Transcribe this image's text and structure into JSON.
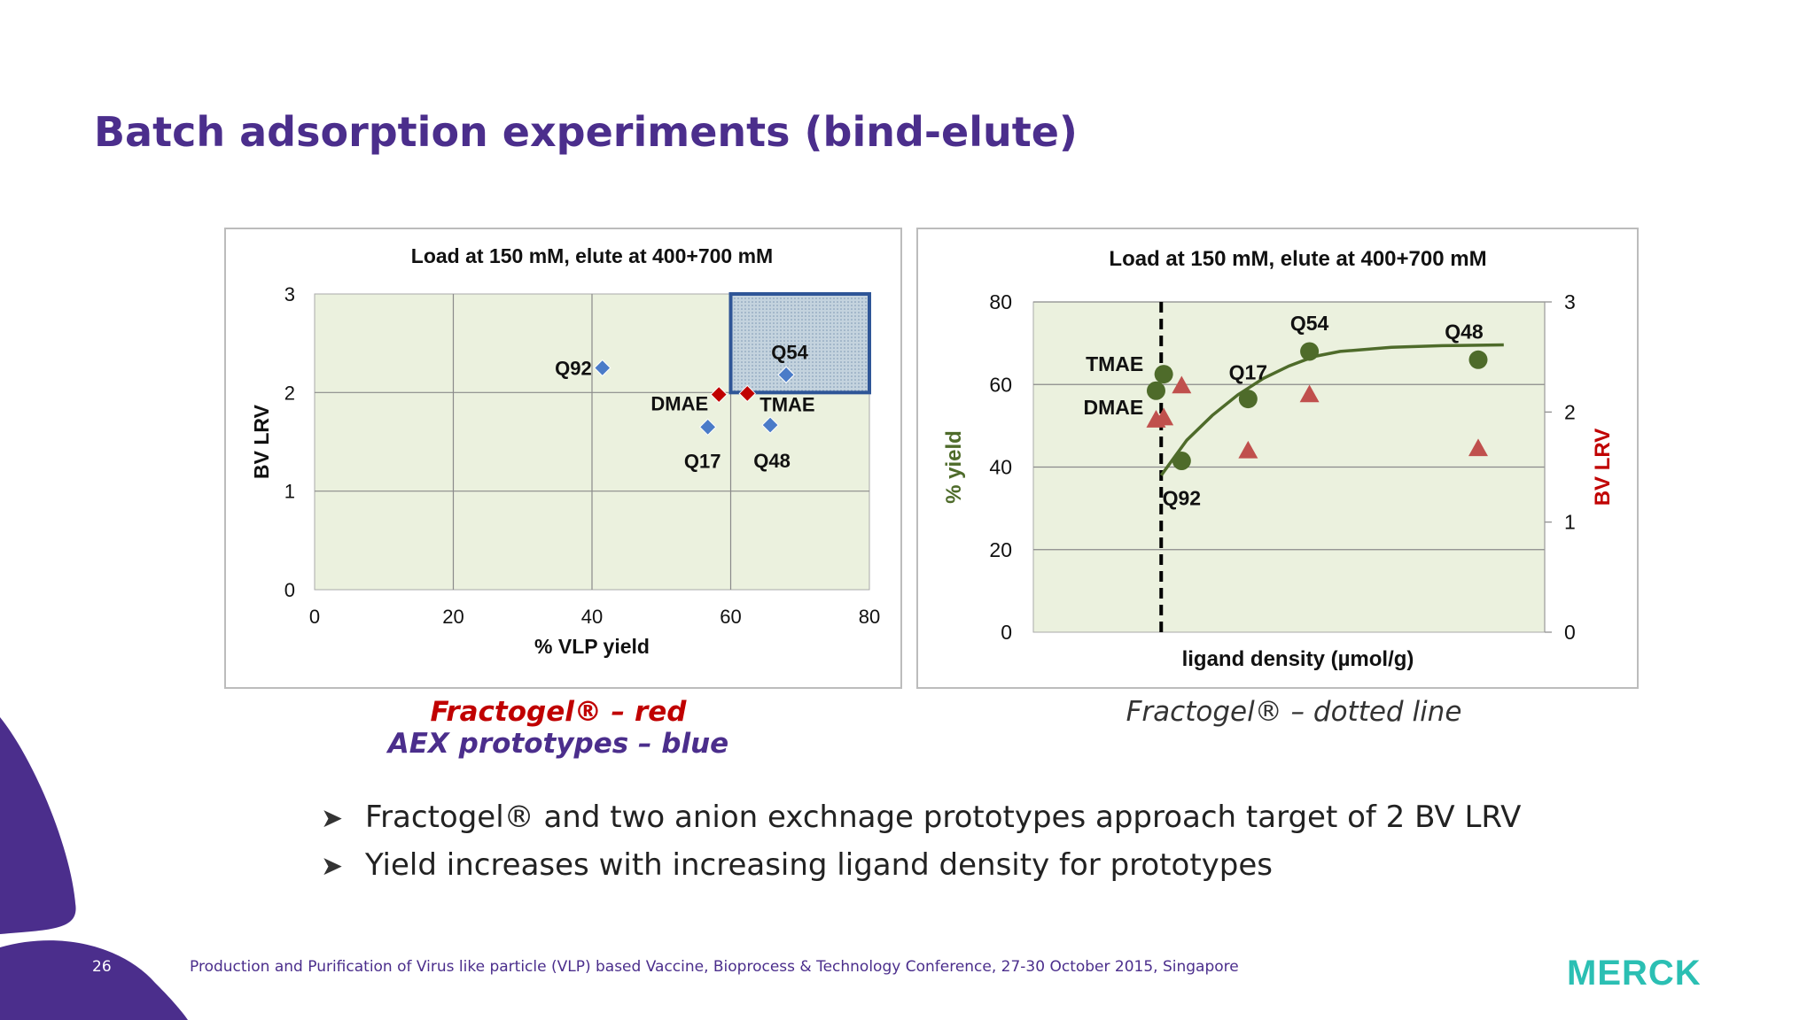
{
  "slide": {
    "title": "Batch adsorption experiments (bind-elute)",
    "caption_left_line1": "Fractogel® – red",
    "caption_left_line2": "AEX prototypes – blue",
    "caption_right": "Fractogel® – dotted line",
    "bullets": [
      "Fractogel® and two anion exchnage prototypes approach target of 2 BV LRV",
      "Yield increases with increasing ligand density for prototypes"
    ],
    "page_number": "26",
    "footer": "Production and Purification of Virus like particle (VLP) based Vaccine, Bioprocess & Technology Conference, 27-30 October 2015, Singapore",
    "logo_text": "MERCK",
    "colors": {
      "accent": "#4b2e8c",
      "fractogel": "#c00000",
      "prototype": "#4a7bc8",
      "yield": "#4e6b2a",
      "lrv": "#c0504d",
      "plot_bg": "#ebf1de",
      "logo": "#2bbfb3"
    }
  },
  "chart_data": [
    {
      "type": "scatter",
      "title": "Load at 150 mM, elute at 400+700 mM",
      "xlabel": "% VLP yield",
      "ylabel": "BV LRV",
      "xlim": [
        0,
        80
      ],
      "ylim": [
        0,
        3
      ],
      "xticks": [
        0,
        20,
        40,
        60,
        80
      ],
      "yticks": [
        0,
        1,
        2,
        3
      ],
      "grid": true,
      "target_region": {
        "x": [
          60,
          80
        ],
        "y": [
          2,
          3
        ]
      },
      "series": [
        {
          "color": "#4a7bc8",
          "marker": "diamond",
          "points": [
            {
              "label": "Q92",
              "x": 41.5,
              "y": 2.25
            },
            {
              "label": "Q54",
              "x": 68,
              "y": 2.18
            },
            {
              "label": "Q17",
              "x": 56.7,
              "y": 1.65
            },
            {
              "label": "Q48",
              "x": 65.7,
              "y": 1.67
            }
          ]
        },
        {
          "color": "#c00000",
          "marker": "diamond",
          "points": [
            {
              "label": "DMAE",
              "x": 58.3,
              "y": 1.98
            },
            {
              "label": "TMAE",
              "x": 62.4,
              "y": 1.99
            }
          ]
        }
      ]
    },
    {
      "type": "scatter",
      "title": "Load at 150 mM, elute at 400+700 mM",
      "xlabel": "ligand density (µmol/g)",
      "ylabel": "% yield",
      "y2label": "BV LRV",
      "ylim": [
        0,
        80
      ],
      "y2lim": [
        0,
        3
      ],
      "yticks": [
        0,
        20,
        40,
        60,
        80
      ],
      "y2ticks": [
        0,
        1,
        2,
        3
      ],
      "grid": true,
      "fractogel_x": 0.25,
      "series": [
        {
          "axis": "y",
          "color": "#4e6b2a",
          "marker": "circle",
          "points": [
            {
              "label": "",
              "x": 0.24,
              "y": 58.5
            },
            {
              "label": "",
              "x": 0.255,
              "y": 62.5
            },
            {
              "label": "Q92",
              "x": 0.29,
              "y": 41.5
            },
            {
              "label": "Q17",
              "x": 0.42,
              "y": 56.5
            },
            {
              "label": "Q54",
              "x": 0.54,
              "y": 68
            },
            {
              "label": "Q48",
              "x": 0.87,
              "y": 66
            }
          ]
        },
        {
          "axis": "y2",
          "color": "#c0504d",
          "marker": "triangle",
          "points": [
            {
              "x": 0.24,
              "y": 1.93
            },
            {
              "x": 0.255,
              "y": 1.95
            },
            {
              "x": 0.29,
              "y": 2.24
            },
            {
              "x": 0.42,
              "y": 1.65
            },
            {
              "x": 0.54,
              "y": 2.16
            },
            {
              "x": 0.87,
              "y": 1.67
            }
          ]
        },
        {
          "axis": "y",
          "color": "#4e6b2a",
          "type": "line",
          "points": [
            {
              "x": 0.25,
              "y": 38
            },
            {
              "x": 0.3,
              "y": 46.5
            },
            {
              "x": 0.35,
              "y": 52.5
            },
            {
              "x": 0.4,
              "y": 57.5
            },
            {
              "x": 0.45,
              "y": 61.5
            },
            {
              "x": 0.5,
              "y": 64.5
            },
            {
              "x": 0.55,
              "y": 66.8
            },
            {
              "x": 0.6,
              "y": 68
            },
            {
              "x": 0.7,
              "y": 69
            },
            {
              "x": 0.8,
              "y": 69.4
            },
            {
              "x": 0.92,
              "y": 69.6
            }
          ]
        }
      ],
      "annotations": [
        {
          "text": "TMAE"
        },
        {
          "text": "DMAE"
        }
      ]
    }
  ]
}
